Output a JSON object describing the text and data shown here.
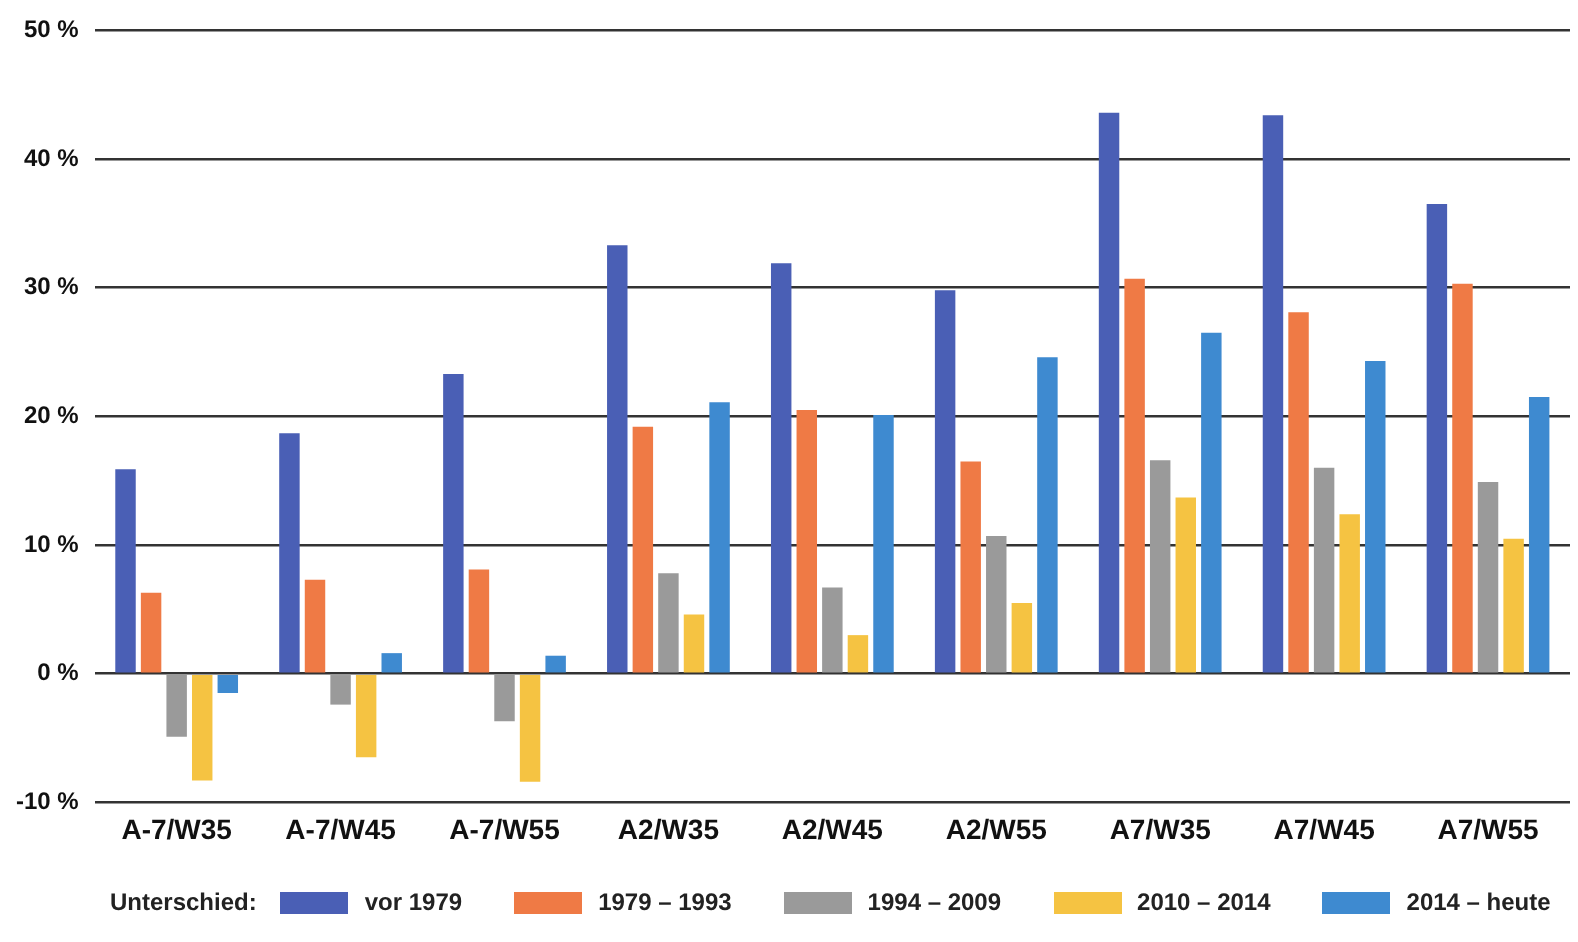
{
  "chart_data": {
    "type": "bar",
    "categories": [
      "A-7/W35",
      "A-7/W45",
      "A-7/W55",
      "A2/W35",
      "A2/W45",
      "A2/W55",
      "A7/W35",
      "A7/W45",
      "A7/W55"
    ],
    "series": [
      {
        "name": "vor 1979",
        "color": "#4a5fb5",
        "values": [
          15.9,
          18.7,
          23.3,
          33.3,
          31.9,
          29.8,
          43.6,
          43.4,
          36.5
        ]
      },
      {
        "name": "1979 – 1993",
        "color": "#ef7a45",
        "values": [
          6.3,
          7.3,
          8.1,
          19.2,
          20.5,
          16.5,
          30.7,
          28.1,
          30.3
        ]
      },
      {
        "name": "1994 – 2009",
        "color": "#9a9a9a",
        "values": [
          -4.9,
          -2.4,
          -3.7,
          7.8,
          6.7,
          10.7,
          16.6,
          16.0,
          14.9
        ]
      },
      {
        "name": "2010 – 2014",
        "color": "#f5c342",
        "values": [
          -8.3,
          -6.5,
          -8.4,
          4.6,
          3.0,
          5.5,
          13.7,
          12.4,
          10.5
        ]
      },
      {
        "name": "2014 – heute",
        "color": "#3e8ad0",
        "values": [
          -1.5,
          1.6,
          1.4,
          21.1,
          20.1,
          24.6,
          26.5,
          24.3,
          21.5
        ]
      }
    ],
    "ylim": [
      -10,
      50
    ],
    "yticks": [
      {
        "value": -10,
        "label": "-10 %"
      },
      {
        "value": 0,
        "label": "0 %"
      },
      {
        "value": 10,
        "label": "10 %"
      },
      {
        "value": 20,
        "label": "20 %"
      },
      {
        "value": 30,
        "label": "30 %"
      },
      {
        "value": 40,
        "label": "40 %"
      },
      {
        "value": 50,
        "label": "50 %"
      }
    ],
    "grid": "y",
    "legend": "bottom",
    "legend_title": "Unterschied:"
  }
}
